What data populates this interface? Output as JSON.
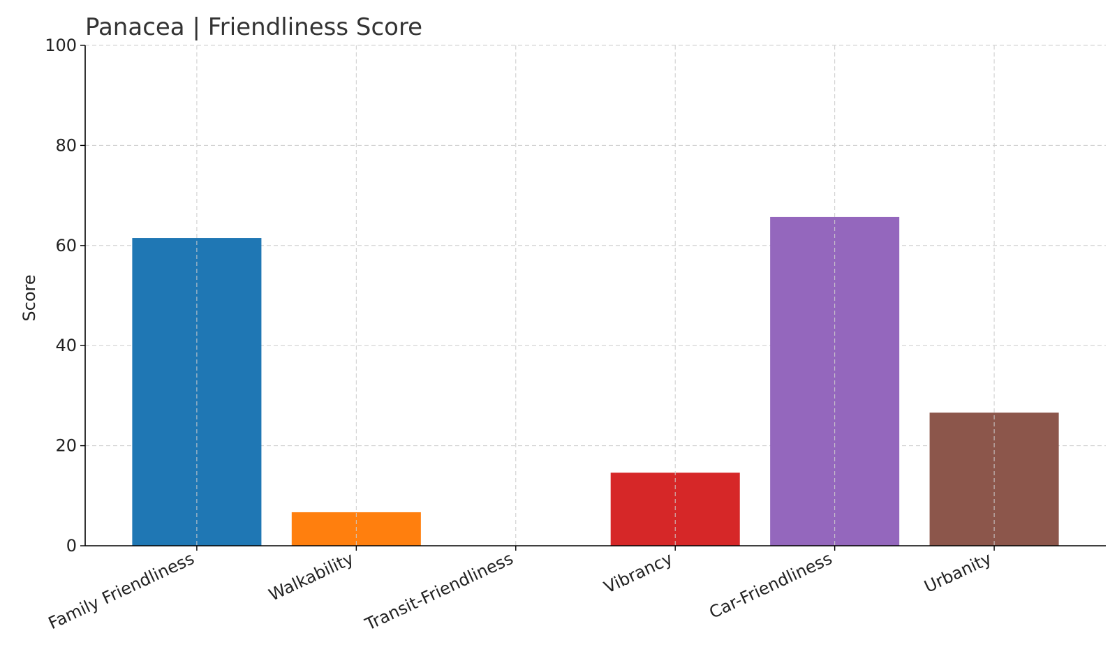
{
  "chart_data": {
    "type": "bar",
    "title": "Panacea |  Friendliness Score",
    "xlabel": "",
    "ylabel": "Score",
    "categories": [
      "Family Friendliness",
      "Walkability",
      "Transit-Friendliness",
      "Vibrancy",
      "Car-Friendliness",
      "Urbanity"
    ],
    "values": [
      61.5,
      6.7,
      0,
      14.6,
      65.7,
      26.6
    ],
    "colors": [
      "#1f77b4",
      "#ff7f0e",
      "#2ca02c",
      "#d62728",
      "#9467bd",
      "#8c564b"
    ],
    "ylim": [
      0,
      100
    ],
    "yticks": [
      0,
      20,
      40,
      60,
      80,
      100
    ],
    "grid": true,
    "legend": "none"
  }
}
